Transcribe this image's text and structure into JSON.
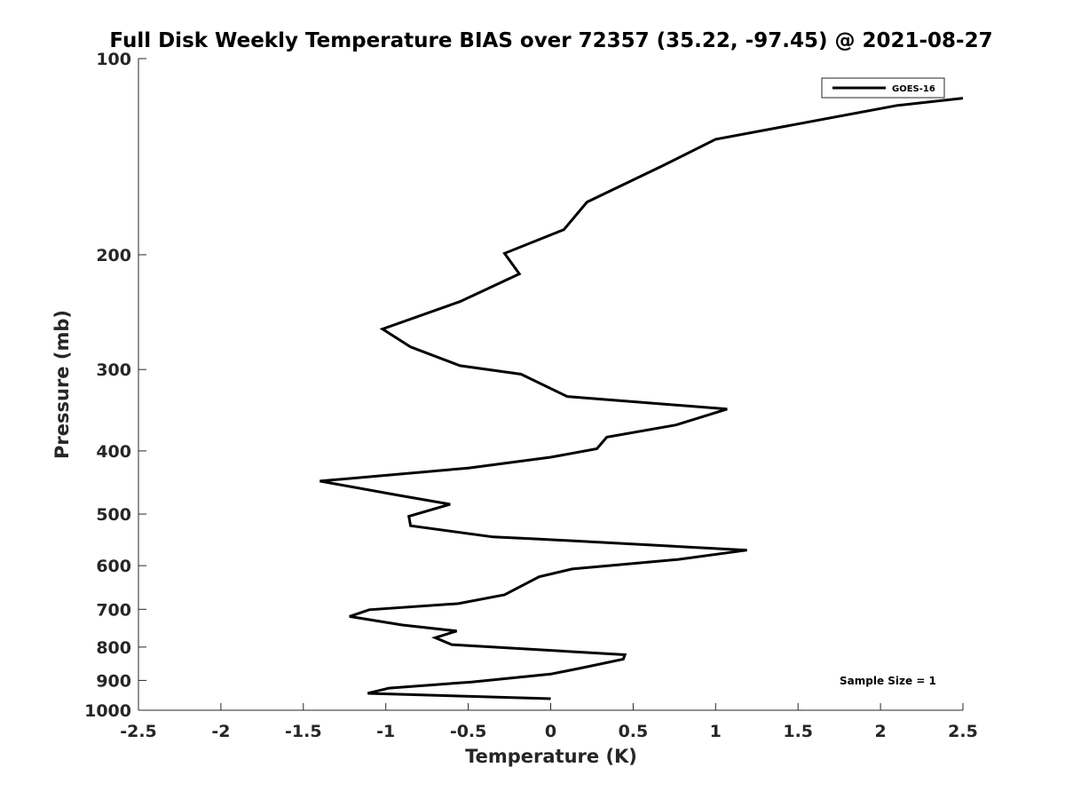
{
  "chart_data": {
    "type": "line",
    "title": "Full Disk Weekly Temperature BIAS over 72357 (35.22, -97.45) @ 2021-08-27",
    "xlabel": "Temperature (K)",
    "ylabel": "Pressure (mb)",
    "xlim": [
      -2.5,
      2.5
    ],
    "ylim": [
      1000,
      100
    ],
    "y_scale": "log",
    "y_reversed": true,
    "grid": false,
    "x_ticks": [
      -2.5,
      -2,
      -1.5,
      -1,
      -0.5,
      0,
      0.5,
      1,
      1.5,
      2,
      2.5
    ],
    "x_tick_labels": [
      "-2.5",
      "-2",
      "-1.5",
      "-1",
      "-0.5",
      "0",
      "0.5",
      "1",
      "1.5",
      "2",
      "2.5"
    ],
    "y_ticks": [
      100,
      200,
      300,
      400,
      500,
      600,
      700,
      800,
      900,
      1000
    ],
    "y_tick_labels": [
      "100",
      "200",
      "300",
      "400",
      "500",
      "600",
      "700",
      "800",
      "900",
      "1000"
    ],
    "legend_position": "top-right",
    "series": [
      {
        "name": "GOES-16",
        "color": "#000000",
        "points": [
          [
            2.5,
            115
          ],
          [
            2.1,
            118
          ],
          [
            1.0,
            133
          ],
          [
            0.68,
            146
          ],
          [
            0.22,
            166
          ],
          [
            0.08,
            183
          ],
          [
            -0.28,
            199
          ],
          [
            -0.19,
            214
          ],
          [
            -0.55,
            236
          ],
          [
            -1.02,
            260
          ],
          [
            -0.85,
            277
          ],
          [
            -0.55,
            296
          ],
          [
            -0.18,
            305
          ],
          [
            0.1,
            330
          ],
          [
            1.07,
            345
          ],
          [
            0.76,
            365
          ],
          [
            0.34,
            381
          ],
          [
            0.28,
            397
          ],
          [
            0.0,
            409
          ],
          [
            -0.5,
            425
          ],
          [
            -1.4,
            445
          ],
          [
            -0.92,
            468
          ],
          [
            -0.61,
            483
          ],
          [
            -0.86,
            504
          ],
          [
            -0.85,
            521
          ],
          [
            -0.35,
            542
          ],
          [
            -0.08,
            546
          ],
          [
            1.19,
            568
          ],
          [
            0.77,
            587
          ],
          [
            0.13,
            607
          ],
          [
            -0.07,
            624
          ],
          [
            -0.28,
            665
          ],
          [
            -0.56,
            686
          ],
          [
            -1.1,
            701
          ],
          [
            -1.22,
            718
          ],
          [
            -0.9,
            740
          ],
          [
            -0.57,
            756
          ],
          [
            -0.7,
            774
          ],
          [
            -0.6,
            793
          ],
          [
            0.45,
            822
          ],
          [
            0.44,
            835
          ],
          [
            0.2,
            860
          ],
          [
            0.0,
            880
          ],
          [
            -0.48,
            905
          ],
          [
            -0.98,
            925
          ],
          [
            -1.11,
            942
          ],
          [
            0.0,
            960
          ]
        ]
      }
    ],
    "annotations": [
      "Sample Size = 1"
    ]
  }
}
